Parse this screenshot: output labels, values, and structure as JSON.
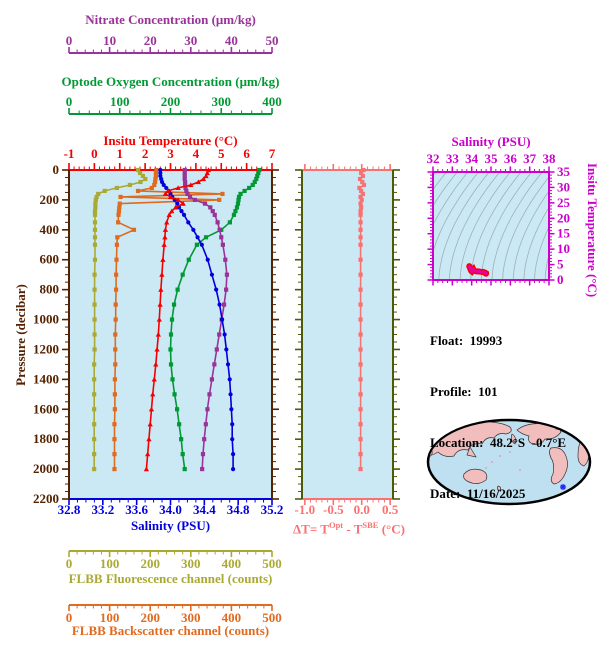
{
  "figure": {
    "kind": "float-profile-viewer"
  },
  "colors": {
    "nitrate": "#993399",
    "oxygen": "#009933",
    "temperature": "#F40000",
    "salinity": "#0000DD",
    "pressure": "#552200",
    "fluorescence": "#AAAA33",
    "backscatter": "#E06A1E",
    "delta_t": "#F87272",
    "mid_frame": "#4F5A08",
    "ts_frame": "#CC00CC",
    "ts_data": "#E8009E",
    "ts_data_edge": "#F40000",
    "plot_bg": "#CBE9F4",
    "contour": "#9FB0B4",
    "map_land": "#F2BDBD",
    "map_ocean": "#BFE0F0",
    "map_outline": "#000000",
    "map_marker": "#2222EE"
  },
  "axes": {
    "nitrate": {
      "title": "Nitrate Concentration (μm/kg)",
      "min": 0,
      "max": 50,
      "majors": [
        0,
        10,
        20,
        30,
        40,
        50
      ],
      "labels": [
        "0",
        "10",
        "20",
        "30",
        "40",
        "50"
      ],
      "minor": 2
    },
    "oxygen": {
      "title": "Optode Oxygen Concentration (μm/kg)",
      "min": 0,
      "max": 400,
      "majors": [
        0,
        100,
        200,
        300,
        400
      ],
      "labels": [
        "0",
        "100",
        "200",
        "300",
        "400"
      ],
      "minor": 20
    },
    "temperature": {
      "title": "Insitu Temperature (°C)",
      "min": -1,
      "max": 7,
      "majors": [
        -1,
        0,
        1,
        2,
        3,
        4,
        5,
        6,
        7
      ],
      "labels": [
        "-1",
        "0",
        "1",
        "2",
        "3",
        "4",
        "5",
        "6",
        "7"
      ],
      "minor": 0.2
    },
    "salinity": {
      "title": "Salinity (PSU)",
      "min": 32.8,
      "max": 35.2,
      "majors": [
        32.8,
        33.2,
        33.6,
        34.0,
        34.4,
        34.8,
        35.2
      ],
      "labels": [
        "32.8",
        "33.2",
        "33.6",
        "34.0",
        "34.4",
        "34.8",
        "35.2"
      ],
      "minor": 0.1
    },
    "pressure": {
      "title": "Pressure (decibar)",
      "min": 0,
      "max": 2200,
      "majors": [
        0,
        200,
        400,
        600,
        800,
        1000,
        1200,
        1400,
        1600,
        1800,
        2000,
        2200
      ],
      "labels": [
        "0",
        "200",
        "400",
        "600",
        "800",
        "1000",
        "1200",
        "1400",
        "1600",
        "1800",
        "2000",
        "2200"
      ],
      "minor": 50
    },
    "fluorescence": {
      "title": "FLBB Fluorescence channel (counts)",
      "min": 0,
      "max": 500,
      "majors": [
        0,
        100,
        200,
        300,
        400,
        500
      ],
      "labels": [
        "0",
        "100",
        "200",
        "300",
        "400",
        "500"
      ],
      "minor": 20
    },
    "backscatter": {
      "title": "FLBB Backscatter channel (counts)",
      "min": 0,
      "max": 500,
      "majors": [
        0,
        100,
        200,
        300,
        400,
        500
      ],
      "labels": [
        "0",
        "100",
        "200",
        "300",
        "400",
        "500"
      ],
      "minor": 20
    },
    "delta_t": {
      "title_parts": {
        "prefix": "ΔT= T",
        "sup1": "Opt",
        "mid": " - T",
        "sup2": "SBE",
        "suffix": " (°C)"
      },
      "min": -1.05,
      "max": 0.55,
      "majors": [
        -1.0,
        -0.5,
        0.0,
        0.5
      ],
      "labels": [
        "-1.0",
        "-0.5",
        "0.0",
        "0.5"
      ],
      "minor": 0.1
    },
    "ts_salinity": {
      "title": "Salinity (PSU)",
      "min": 32,
      "max": 38,
      "majors": [
        32,
        33,
        34,
        35,
        36,
        37,
        38
      ],
      "labels": [
        "32",
        "33",
        "34",
        "35",
        "36",
        "37",
        "38"
      ],
      "minor": 0.25
    },
    "ts_temperature": {
      "title": "Insitu Temperature (°C)",
      "min": 0,
      "max": 35,
      "majors": [
        0,
        5,
        10,
        15,
        20,
        25,
        30,
        35
      ],
      "labels": [
        "0",
        "5",
        "10",
        "15",
        "20",
        "25",
        "30",
        "35"
      ],
      "minor": 1
    }
  },
  "info": {
    "lines": [
      "Float:  19993",
      "Profile:  101",
      "Location:  48.2°S  -0.7°E",
      "Date:  11/16/2025"
    ]
  },
  "chart_data": [
    {
      "id": "profile-plot",
      "type": "line",
      "ylabel": "Pressure (decibar)",
      "ylim": [
        0,
        2200
      ],
      "grid": false,
      "pressures": [
        0,
        20,
        40,
        60,
        80,
        100,
        120,
        140,
        160,
        180,
        200,
        225,
        250,
        275,
        300,
        350,
        400,
        450,
        500,
        600,
        700,
        800,
        900,
        1000,
        1100,
        1200,
        1300,
        1400,
        1500,
        1600,
        1700,
        1800,
        1900,
        2000
      ],
      "series": [
        {
          "name": "FLBB Fluorescence channel",
          "axis": "fluorescence",
          "marker": "square",
          "values": [
            170,
            175,
            182,
            188,
            176,
            150,
            118,
            88,
            72,
            68,
            66,
            65,
            65,
            64,
            64,
            64,
            64,
            64,
            64,
            64,
            63,
            63,
            63,
            63,
            63,
            63,
            62,
            62,
            62,
            62,
            62,
            62,
            62,
            62
          ]
        },
        {
          "name": "FLBB Backscatter channel",
          "axis": "backscatter",
          "marker": "square",
          "values": [
            215,
            214,
            214,
            213,
            212,
            210,
            204,
            170,
            378,
            127,
            370,
            125,
            124,
            123,
            122,
            121,
            160,
            119,
            118,
            117,
            116,
            116,
            115,
            115,
            114,
            114,
            114,
            113,
            113,
            113,
            112,
            112,
            112,
            112
          ]
        },
        {
          "name": "Optode Oxygen Concentration",
          "axis": "oxygen",
          "marker": "square",
          "values": [
            375,
            373,
            371,
            369,
            366,
            362,
            355,
            346,
            338,
            335,
            334,
            333,
            331,
            328,
            325,
            317,
            300,
            270,
            252,
            236,
            224,
            214,
            207,
            203,
            201,
            200,
            201,
            204,
            208,
            213,
            217,
            221,
            224,
            228
          ]
        },
        {
          "name": "Nitrate Concentration",
          "axis": "nitrate",
          "marker": "square",
          "values": [
            28.5,
            28.5,
            28.5,
            28.5,
            28.6,
            28.6,
            28.7,
            28.9,
            29.2,
            29.8,
            31.0,
            33.5,
            34.8,
            35.4,
            35.9,
            36.6,
            37.1,
            37.5,
            37.9,
            38.5,
            38.9,
            38.7,
            38.2,
            37.6,
            37.0,
            36.4,
            35.8,
            35.2,
            34.6,
            34.1,
            33.7,
            33.3,
            33.0,
            32.8
          ]
        },
        {
          "name": "Salinity",
          "axis": "salinity",
          "marker": "circle",
          "values": [
            33.88,
            33.88,
            33.88,
            33.89,
            33.9,
            33.92,
            33.95,
            33.98,
            34.0,
            34.02,
            34.05,
            34.08,
            34.1,
            34.13,
            34.16,
            34.21,
            34.27,
            34.32,
            34.37,
            34.44,
            34.49,
            34.54,
            34.58,
            34.61,
            34.64,
            34.66,
            34.68,
            34.7,
            34.71,
            34.72,
            34.73,
            34.73,
            34.74,
            34.74
          ]
        },
        {
          "name": "Insitu Temperature",
          "axis": "temperature",
          "marker": "triangle",
          "values": [
            4.5,
            4.45,
            4.4,
            4.3,
            4.1,
            3.8,
            3.3,
            2.9,
            2.8,
            3.0,
            3.3,
            3.5,
            3.2,
            3.05,
            2.95,
            2.85,
            2.8,
            2.78,
            2.75,
            2.7,
            2.66,
            2.62,
            2.59,
            2.56,
            2.52,
            2.47,
            2.42,
            2.36,
            2.3,
            2.25,
            2.2,
            2.15,
            2.1,
            2.05
          ]
        }
      ]
    },
    {
      "id": "delta-t-plot",
      "type": "line",
      "ylabel": "Pressure (decibar)",
      "ylim": [
        0,
        2200
      ],
      "pressures": [
        0,
        20,
        40,
        60,
        80,
        100,
        120,
        140,
        160,
        180,
        200,
        225,
        250,
        275,
        300,
        350,
        400,
        450,
        500,
        600,
        700,
        800,
        900,
        1000,
        1100,
        1200,
        1300,
        1400,
        1500,
        1600,
        1700,
        1800,
        1900,
        2000
      ],
      "series": [
        {
          "name": "ΔT = T_Opt - T_SBE",
          "axis": "delta_t",
          "marker": "square",
          "values": [
            0.03,
            -0.01,
            0.02,
            -0.03,
            0.01,
            0.04,
            -0.04,
            -0.01,
            0.02,
            -0.02,
            0.0,
            -0.02,
            -0.01,
            -0.02,
            -0.02,
            -0.02,
            -0.02,
            -0.02,
            -0.02,
            -0.02,
            -0.02,
            -0.02,
            -0.02,
            -0.02,
            -0.02,
            -0.02,
            -0.02,
            -0.02,
            -0.02,
            -0.02,
            -0.02,
            -0.02,
            -0.02,
            -0.02
          ]
        }
      ]
    },
    {
      "id": "ts-diagram",
      "type": "scatter",
      "xlabel": "Salinity (PSU)",
      "ylabel": "Insitu Temperature (°C)",
      "xlim": [
        32,
        38
      ],
      "ylim": [
        0,
        35
      ],
      "note": "T-S curve drawn from the Salinity and Insitu Temperature profile series above; gray isopycnal contours in background"
    }
  ],
  "map": {
    "description": "Pacific-centered world map",
    "marker": "float-position-star"
  }
}
